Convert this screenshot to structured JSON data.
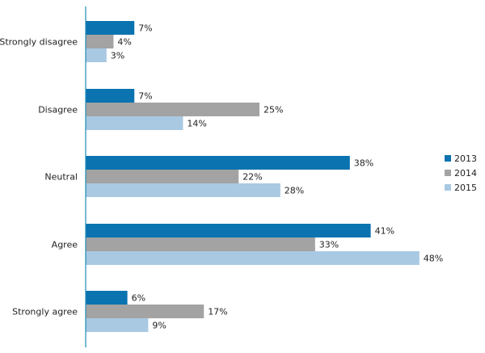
{
  "chart_data": {
    "type": "bar",
    "orientation": "horizontal",
    "title": "",
    "xlabel": "",
    "ylabel": "",
    "categories": [
      "Strongly disagree",
      "Disagree",
      "Neutral",
      "Agree",
      "Strongly agree"
    ],
    "series": [
      {
        "name": "2013",
        "color": "#0a73b0",
        "values": [
          7,
          7,
          38,
          41,
          6
        ],
        "labels": [
          "7%",
          "7%",
          "38%",
          "41%",
          "6%"
        ]
      },
      {
        "name": "2014",
        "color": "#a3a3a3",
        "values": [
          4,
          25,
          22,
          33,
          17
        ],
        "labels": [
          "4%",
          "25%",
          "22%",
          "33%",
          "17%"
        ]
      },
      {
        "name": "2015",
        "color": "#a9c9e3",
        "values": [
          3,
          14,
          28,
          48,
          9
        ],
        "labels": [
          "3%",
          "14%",
          "28%",
          "48%",
          "9%"
        ]
      }
    ],
    "value_unit": "%",
    "xlim": [
      0,
      48
    ],
    "grid": false,
    "legend_position": "right"
  }
}
